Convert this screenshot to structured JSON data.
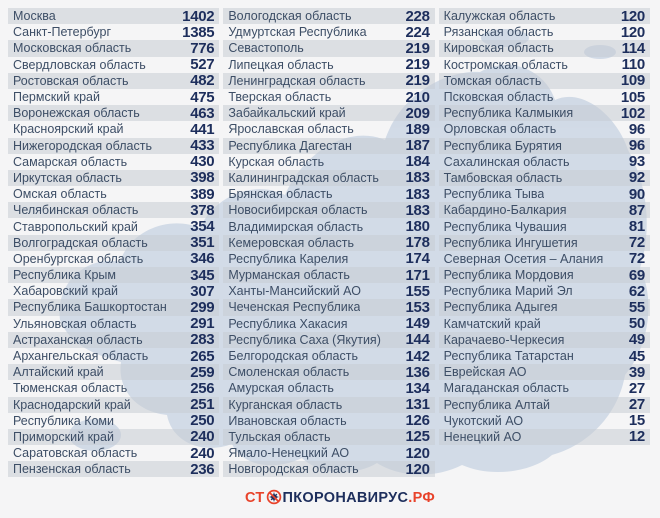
{
  "chart_data": {
    "type": "table",
    "title": "",
    "description_visible_text_only": true,
    "columns": [
      {
        "rows": [
          [
            "Москва",
            1402
          ],
          [
            "Санкт-Петербург",
            1385
          ],
          [
            "Московская область",
            776
          ],
          [
            "Свердловская область",
            527
          ],
          [
            "Ростовская область",
            482
          ],
          [
            "Пермский край",
            475
          ],
          [
            "Воронежская область",
            463
          ],
          [
            "Красноярский край",
            441
          ],
          [
            "Нижегородская область",
            433
          ],
          [
            "Самарская область",
            430
          ],
          [
            "Иркутская область",
            398
          ],
          [
            "Омская область",
            389
          ],
          [
            "Челябинская область",
            378
          ],
          [
            "Ставропольский край",
            354
          ],
          [
            "Волгоградская область",
            351
          ],
          [
            "Оренбургская область",
            346
          ],
          [
            "Республика Крым",
            345
          ],
          [
            "Хабаровский край",
            307
          ],
          [
            "Республика Башкортостан",
            299
          ],
          [
            "Ульяновская область",
            291
          ],
          [
            "Астраханская область",
            283
          ],
          [
            "Архангельская область",
            265
          ],
          [
            "Алтайский край",
            259
          ],
          [
            "Тюменская область",
            256
          ],
          [
            "Краснодарский край",
            251
          ],
          [
            "Республика Коми",
            250
          ],
          [
            "Приморский край",
            240
          ],
          [
            "Саратовская область",
            240
          ],
          [
            "Пензенская область",
            236
          ]
        ]
      },
      {
        "rows": [
          [
            "Вологодская область",
            228
          ],
          [
            "Удмуртская Республика",
            224
          ],
          [
            "Севастополь",
            219
          ],
          [
            "Липецкая область",
            219
          ],
          [
            "Ленинградская область",
            219
          ],
          [
            "Тверская область",
            210
          ],
          [
            "Забайкальский край",
            209
          ],
          [
            "Ярославская область",
            189
          ],
          [
            "Республика Дагестан",
            187
          ],
          [
            "Курская область",
            184
          ],
          [
            "Калининградская область",
            183
          ],
          [
            "Брянская область",
            183
          ],
          [
            "Новосибирская область",
            183
          ],
          [
            "Владимирская область",
            180
          ],
          [
            "Кемеровская область",
            178
          ],
          [
            "Республика Карелия",
            174
          ],
          [
            "Мурманская область",
            171
          ],
          [
            "Ханты-Мансийский АО",
            155
          ],
          [
            "Чеченская Республика",
            153
          ],
          [
            "Республика Хакасия",
            149
          ],
          [
            "Республика Саха (Якутия)",
            144
          ],
          [
            "Белгородская область",
            142
          ],
          [
            "Смоленская область",
            136
          ],
          [
            "Амурская область",
            134
          ],
          [
            "Курганская область",
            131
          ],
          [
            "Ивановская область",
            126
          ],
          [
            "Тульская область",
            125
          ],
          [
            "Ямало-Ненецкий АО",
            120
          ],
          [
            "Новгородская область",
            120
          ]
        ]
      },
      {
        "rows": [
          [
            "Калужская область",
            120
          ],
          [
            "Рязанская область",
            120
          ],
          [
            "Кировская область",
            114
          ],
          [
            "Костромская область",
            110
          ],
          [
            "Томская область",
            109
          ],
          [
            "Псковская область",
            105
          ],
          [
            "Республика Калмыкия",
            102
          ],
          [
            "Орловская область",
            96
          ],
          [
            "Республика Бурятия",
            96
          ],
          [
            "Сахалинская область",
            93
          ],
          [
            "Тамбовская область",
            92
          ],
          [
            "Республика Тыва",
            90
          ],
          [
            "Кабардино-Балкария",
            87
          ],
          [
            "Республика Чувашия",
            81
          ],
          [
            "Республика Ингушетия",
            72
          ],
          [
            "Северная Осетия – Алания",
            72
          ],
          [
            "Республика Мордовия",
            69
          ],
          [
            "Республика Марий Эл",
            62
          ],
          [
            "Республика Адыгея",
            55
          ],
          [
            "Камчатский край",
            50
          ],
          [
            "Карачаево-Черкесия",
            49
          ],
          [
            "Республика Татарстан",
            45
          ],
          [
            "Еврейская АО",
            39
          ],
          [
            "Магаданская область",
            27
          ],
          [
            "Республика Алтай",
            27
          ],
          [
            "Чукотский АО",
            15
          ],
          [
            "Ненецкий АО",
            12
          ]
        ]
      }
    ]
  },
  "logo": {
    "prefix": "СТ",
    "middle": "ПКОРОНАВИРУС",
    "suffix": ".РФ",
    "icon": "virus-prohibition-icon"
  },
  "colors": {
    "background": "#f5f5f6",
    "stripe": "#e2e4e8",
    "region_name_text": "#3d4e66",
    "value_text": "#1d2e5c",
    "map_blue": "#c6d1e1",
    "logo_red": "#e8432b",
    "logo_navy": "#1d2e5c"
  }
}
